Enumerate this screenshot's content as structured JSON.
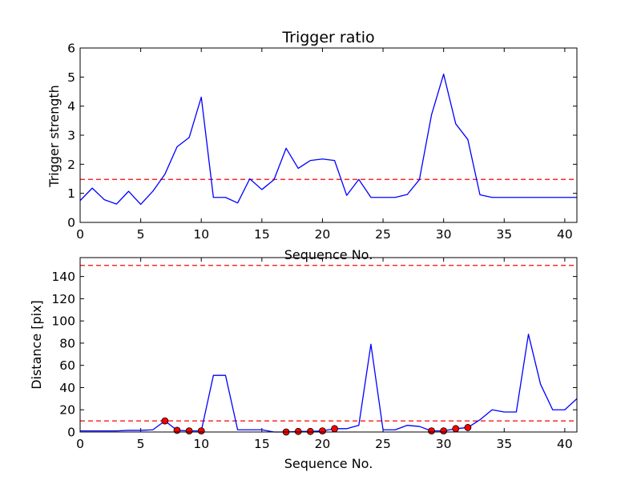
{
  "chart_data": [
    {
      "type": "line",
      "title": "Trigger ratio",
      "xlabel": "Sequence No.",
      "ylabel": "Trigger strength",
      "xlim": [
        0,
        41
      ],
      "ylim": [
        0,
        6
      ],
      "xticks": [
        0,
        5,
        10,
        15,
        20,
        25,
        30,
        35,
        40
      ],
      "yticks": [
        0,
        1,
        2,
        3,
        4,
        5,
        6
      ],
      "grid": false,
      "series": [
        {
          "color": "#0000ff",
          "style": "solid",
          "x": [
            0,
            1,
            2,
            3,
            4,
            5,
            6,
            7,
            8,
            9,
            10,
            11,
            12,
            13,
            14,
            15,
            16,
            17,
            18,
            19,
            20,
            21,
            22,
            23,
            24,
            25,
            26,
            27,
            28,
            29,
            30,
            31,
            32,
            33,
            34,
            35,
            36,
            37,
            38,
            39,
            40,
            41
          ],
          "values": [
            0.75,
            1.18,
            0.78,
            0.63,
            1.07,
            0.62,
            1.07,
            1.66,
            2.6,
            2.92,
            4.31,
            0.86,
            0.86,
            0.67,
            1.5,
            1.13,
            1.47,
            2.55,
            1.86,
            2.13,
            2.18,
            2.13,
            0.93,
            1.48,
            0.86,
            0.86,
            0.86,
            0.96,
            1.47,
            3.7,
            5.1,
            3.39,
            2.85,
            0.95,
            0.86,
            0.86,
            0.86,
            0.86,
            0.86,
            0.86,
            0.86,
            0.86
          ]
        }
      ],
      "hlines": [
        {
          "y": 1.48,
          "color": "#ff0000",
          "style": "dashed"
        }
      ]
    },
    {
      "type": "line",
      "title": "",
      "xlabel": "Sequence No.",
      "ylabel": "Distance [pix]",
      "xlim": [
        0,
        41
      ],
      "ylim": [
        0,
        157
      ],
      "xticks": [
        0,
        5,
        10,
        15,
        20,
        25,
        30,
        35,
        40
      ],
      "yticks": [
        0,
        20,
        40,
        60,
        80,
        100,
        120,
        140
      ],
      "grid": false,
      "series": [
        {
          "color": "#0000ff",
          "style": "solid",
          "x": [
            0,
            1,
            2,
            3,
            4,
            5,
            6,
            7,
            8,
            9,
            10,
            11,
            12,
            13,
            14,
            15,
            16,
            17,
            18,
            19,
            20,
            21,
            22,
            23,
            24,
            25,
            26,
            27,
            28,
            29,
            30,
            31,
            32,
            33,
            34,
            35,
            36,
            37,
            38,
            39,
            40,
            41
          ],
          "values": [
            1,
            1,
            1,
            1,
            1.5,
            1.5,
            2,
            10,
            1.5,
            1,
            1,
            51,
            51,
            2,
            2,
            2,
            0,
            0,
            0.5,
            0.5,
            1,
            3,
            3,
            6,
            79,
            2,
            2,
            6,
            5,
            1,
            1,
            3,
            4,
            11,
            20,
            18,
            18,
            88,
            43,
            20,
            20,
            30
          ]
        }
      ],
      "markers": {
        "color": "#ff0000",
        "edge_color": "#000000",
        "x": [
          7,
          8,
          9,
          10,
          17,
          18,
          19,
          20,
          21,
          29,
          30,
          31,
          32
        ],
        "values": [
          10,
          1.5,
          1,
          1,
          0,
          0.5,
          0.5,
          1,
          3,
          1,
          1,
          3,
          4
        ]
      },
      "hlines": [
        {
          "y": 10,
          "color": "#ff0000",
          "style": "dashed"
        },
        {
          "y": 150,
          "color": "#ff0000",
          "style": "dashed"
        }
      ]
    }
  ]
}
